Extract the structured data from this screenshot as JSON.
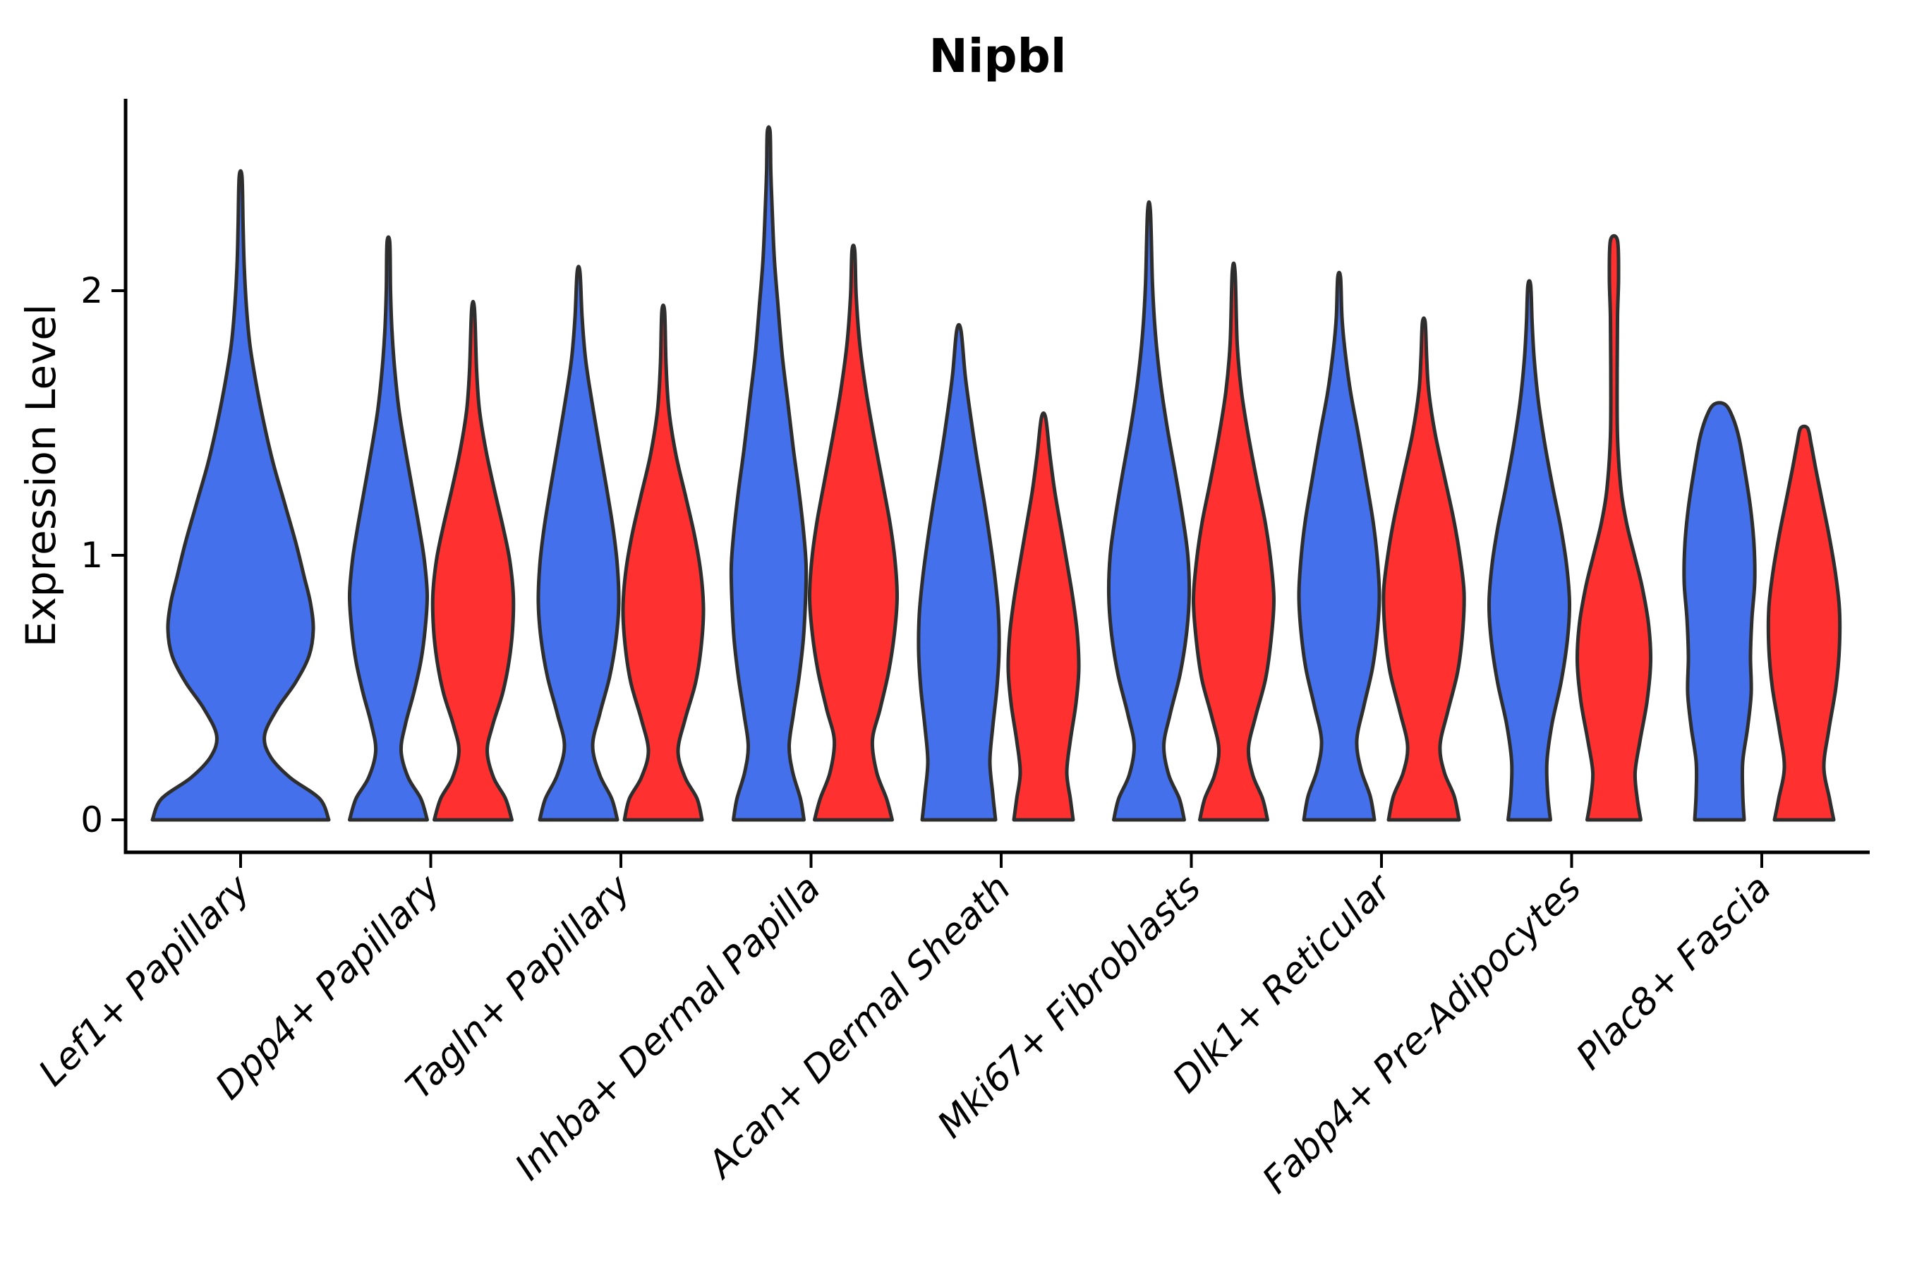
{
  "chart_data": {
    "type": "violin",
    "title": "Nipbl",
    "y_axis": {
      "label": "Expression Level",
      "ticks": [
        0,
        1,
        2
      ],
      "range": [
        -0.12,
        2.75
      ],
      "grid": false
    },
    "x_axis": {
      "categories": [
        "Lef1+ Papillary",
        "Dpp4+ Papillary",
        "Tagln+ Papillary",
        "Inhba+ Dermal Papilla",
        "Acan+ Dermal Sheath",
        "Mki67+ Fibroblasts",
        "Dlk1+ Reticular",
        "Fabp4+ Pre-Adipocytes",
        "Plac8+ Fascia"
      ]
    },
    "legend": "none",
    "series": [
      {
        "name": "blue",
        "color": "#4470EB"
      },
      {
        "name": "red",
        "color": "#FF3030"
      }
    ],
    "outline_color": "#2E2E2E",
    "violins": [
      {
        "category": 0,
        "series": 0,
        "side": "center",
        "max_expression": 2.43,
        "profile": [
          [
            0,
            125
          ],
          [
            0.08,
            112
          ],
          [
            0.16,
            70
          ],
          [
            0.24,
            42
          ],
          [
            0.32,
            34
          ],
          [
            0.42,
            52
          ],
          [
            0.52,
            78
          ],
          [
            0.62,
            97
          ],
          [
            0.72,
            103
          ],
          [
            0.82,
            99
          ],
          [
            0.92,
            90
          ],
          [
            1.05,
            78
          ],
          [
            1.2,
            62
          ],
          [
            1.35,
            46
          ],
          [
            1.5,
            33
          ],
          [
            1.65,
            22
          ],
          [
            1.8,
            13
          ],
          [
            1.95,
            8
          ],
          [
            2.1,
            5
          ],
          [
            2.25,
            3.5
          ],
          [
            2.43,
            2
          ]
        ]
      },
      {
        "category": 1,
        "series": 0,
        "side": "left",
        "max_expression": 2.18,
        "profile": [
          [
            0,
            55
          ],
          [
            0.08,
            46
          ],
          [
            0.16,
            28
          ],
          [
            0.26,
            18
          ],
          [
            0.36,
            24
          ],
          [
            0.48,
            36
          ],
          [
            0.6,
            46
          ],
          [
            0.72,
            52
          ],
          [
            0.85,
            55
          ],
          [
            0.98,
            51
          ],
          [
            1.1,
            44
          ],
          [
            1.25,
            34
          ],
          [
            1.4,
            24
          ],
          [
            1.55,
            15
          ],
          [
            1.7,
            9
          ],
          [
            1.85,
            5
          ],
          [
            2.0,
            3
          ],
          [
            2.18,
            2
          ]
        ]
      },
      {
        "category": 1,
        "series": 1,
        "side": "right",
        "max_expression": 1.93,
        "profile": [
          [
            0,
            55
          ],
          [
            0.08,
            46
          ],
          [
            0.16,
            29
          ],
          [
            0.26,
            20
          ],
          [
            0.36,
            28
          ],
          [
            0.48,
            42
          ],
          [
            0.6,
            51
          ],
          [
            0.72,
            56
          ],
          [
            0.85,
            57
          ],
          [
            0.98,
            52
          ],
          [
            1.1,
            43
          ],
          [
            1.25,
            30
          ],
          [
            1.4,
            18
          ],
          [
            1.55,
            9
          ],
          [
            1.7,
            5
          ],
          [
            1.93,
            2
          ]
        ]
      },
      {
        "category": 2,
        "series": 0,
        "side": "left",
        "max_expression": 2.07,
        "profile": [
          [
            0,
            55
          ],
          [
            0.08,
            47
          ],
          [
            0.17,
            30
          ],
          [
            0.28,
            20
          ],
          [
            0.4,
            30
          ],
          [
            0.54,
            44
          ],
          [
            0.68,
            53
          ],
          [
            0.82,
            57
          ],
          [
            0.96,
            55
          ],
          [
            1.1,
            49
          ],
          [
            1.25,
            40
          ],
          [
            1.42,
            29
          ],
          [
            1.58,
            19
          ],
          [
            1.74,
            10
          ],
          [
            1.9,
            5
          ],
          [
            2.07,
            2
          ]
        ]
      },
      {
        "category": 2,
        "series": 1,
        "side": "right",
        "max_expression": 1.92,
        "profile": [
          [
            0,
            55
          ],
          [
            0.08,
            48
          ],
          [
            0.16,
            31
          ],
          [
            0.26,
            21
          ],
          [
            0.38,
            31
          ],
          [
            0.52,
            46
          ],
          [
            0.66,
            54
          ],
          [
            0.8,
            57
          ],
          [
            0.94,
            53
          ],
          [
            1.08,
            44
          ],
          [
            1.22,
            32
          ],
          [
            1.38,
            18
          ],
          [
            1.55,
            8
          ],
          [
            1.72,
            4
          ],
          [
            1.92,
            2
          ]
        ]
      },
      {
        "category": 3,
        "series": 0,
        "side": "left",
        "max_expression": 2.6,
        "profile": [
          [
            0,
            50
          ],
          [
            0.08,
            45
          ],
          [
            0.18,
            34
          ],
          [
            0.28,
            29
          ],
          [
            0.4,
            35
          ],
          [
            0.54,
            43
          ],
          [
            0.68,
            49
          ],
          [
            0.82,
            52
          ],
          [
            0.96,
            53
          ],
          [
            1.1,
            49
          ],
          [
            1.24,
            43
          ],
          [
            1.4,
            35
          ],
          [
            1.58,
            27
          ],
          [
            1.76,
            19
          ],
          [
            1.95,
            13
          ],
          [
            2.12,
            8
          ],
          [
            2.3,
            5
          ],
          [
            2.45,
            3
          ],
          [
            2.6,
            2
          ]
        ]
      },
      {
        "category": 3,
        "series": 1,
        "side": "right",
        "max_expression": 2.15,
        "profile": [
          [
            0,
            55
          ],
          [
            0.08,
            47
          ],
          [
            0.18,
            33
          ],
          [
            0.3,
            27
          ],
          [
            0.42,
            38
          ],
          [
            0.56,
            50
          ],
          [
            0.7,
            58
          ],
          [
            0.84,
            62
          ],
          [
            0.98,
            59
          ],
          [
            1.12,
            52
          ],
          [
            1.28,
            41
          ],
          [
            1.45,
            29
          ],
          [
            1.62,
            18
          ],
          [
            1.8,
            9
          ],
          [
            1.98,
            4
          ],
          [
            2.15,
            2
          ]
        ]
      },
      {
        "category": 4,
        "series": 0,
        "side": "left",
        "max_expression": 1.85,
        "profile": [
          [
            0,
            52
          ],
          [
            0.1,
            48
          ],
          [
            0.22,
            44
          ],
          [
            0.35,
            48
          ],
          [
            0.5,
            54
          ],
          [
            0.64,
            57
          ],
          [
            0.78,
            56
          ],
          [
            0.92,
            51
          ],
          [
            1.06,
            44
          ],
          [
            1.2,
            36
          ],
          [
            1.36,
            26
          ],
          [
            1.52,
            17
          ],
          [
            1.68,
            9
          ],
          [
            1.85,
            3
          ]
        ]
      },
      {
        "category": 4,
        "series": 1,
        "side": "right",
        "max_expression": 1.52,
        "profile": [
          [
            0,
            42
          ],
          [
            0.08,
            38
          ],
          [
            0.18,
            33
          ],
          [
            0.3,
            38
          ],
          [
            0.44,
            46
          ],
          [
            0.57,
            50
          ],
          [
            0.7,
            48
          ],
          [
            0.83,
            42
          ],
          [
            0.96,
            34
          ],
          [
            1.1,
            25
          ],
          [
            1.24,
            16
          ],
          [
            1.38,
            9
          ],
          [
            1.52,
            3
          ]
        ]
      },
      {
        "category": 5,
        "series": 0,
        "side": "left",
        "max_expression": 2.3,
        "profile": [
          [
            0,
            50
          ],
          [
            0.08,
            43
          ],
          [
            0.17,
            28
          ],
          [
            0.28,
            21
          ],
          [
            0.4,
            30
          ],
          [
            0.55,
            44
          ],
          [
            0.7,
            53
          ],
          [
            0.85,
            57
          ],
          [
            1.0,
            55
          ],
          [
            1.14,
            48
          ],
          [
            1.3,
            38
          ],
          [
            1.48,
            26
          ],
          [
            1.66,
            16
          ],
          [
            1.84,
            9
          ],
          [
            2.02,
            5
          ],
          [
            2.3,
            2
          ]
        ]
      },
      {
        "category": 5,
        "series": 1,
        "side": "right",
        "max_expression": 2.07,
        "profile": [
          [
            0,
            48
          ],
          [
            0.08,
            41
          ],
          [
            0.17,
            27
          ],
          [
            0.27,
            21
          ],
          [
            0.39,
            31
          ],
          [
            0.53,
            45
          ],
          [
            0.68,
            53
          ],
          [
            0.83,
            57
          ],
          [
            0.97,
            53
          ],
          [
            1.12,
            45
          ],
          [
            1.28,
            33
          ],
          [
            1.45,
            21
          ],
          [
            1.62,
            11
          ],
          [
            1.8,
            5
          ],
          [
            2.07,
            2
          ]
        ]
      },
      {
        "category": 6,
        "series": 0,
        "side": "left",
        "max_expression": 2.05,
        "profile": [
          [
            0,
            50
          ],
          [
            0.09,
            44
          ],
          [
            0.19,
            31
          ],
          [
            0.3,
            25
          ],
          [
            0.43,
            35
          ],
          [
            0.57,
            47
          ],
          [
            0.71,
            54
          ],
          [
            0.85,
            57
          ],
          [
            0.99,
            54
          ],
          [
            1.13,
            48
          ],
          [
            1.29,
            38
          ],
          [
            1.46,
            27
          ],
          [
            1.62,
            16
          ],
          [
            1.78,
            8
          ],
          [
            1.9,
            4
          ],
          [
            2.05,
            2
          ]
        ]
      },
      {
        "category": 6,
        "series": 1,
        "side": "right",
        "max_expression": 1.88,
        "profile": [
          [
            0,
            50
          ],
          [
            0.09,
            43
          ],
          [
            0.18,
            29
          ],
          [
            0.28,
            23
          ],
          [
            0.41,
            34
          ],
          [
            0.56,
            48
          ],
          [
            0.71,
            55
          ],
          [
            0.86,
            57
          ],
          [
            1.0,
            51
          ],
          [
            1.14,
            42
          ],
          [
            1.3,
            29
          ],
          [
            1.46,
            16
          ],
          [
            1.62,
            7
          ],
          [
            1.75,
            4
          ],
          [
            1.88,
            2
          ]
        ]
      },
      {
        "category": 7,
        "series": 0,
        "side": "left",
        "max_expression": 2.02,
        "profile": [
          [
            0,
            30
          ],
          [
            0.1,
            26
          ],
          [
            0.22,
            25
          ],
          [
            0.36,
            32
          ],
          [
            0.52,
            45
          ],
          [
            0.68,
            54
          ],
          [
            0.82,
            57
          ],
          [
            0.96,
            53
          ],
          [
            1.1,
            45
          ],
          [
            1.26,
            33
          ],
          [
            1.42,
            22
          ],
          [
            1.58,
            13
          ],
          [
            1.74,
            7
          ],
          [
            1.88,
            4
          ],
          [
            2.02,
            2
          ]
        ]
      },
      {
        "category": 7,
        "series": 1,
        "side": "right",
        "max_expression": 2.19,
        "profile": [
          [
            0,
            38
          ],
          [
            0.08,
            33
          ],
          [
            0.18,
            30
          ],
          [
            0.3,
            37
          ],
          [
            0.45,
            47
          ],
          [
            0.6,
            52
          ],
          [
            0.74,
            49
          ],
          [
            0.88,
            40
          ],
          [
            1.0,
            29
          ],
          [
            1.12,
            18
          ],
          [
            1.25,
            10
          ],
          [
            1.45,
            5
          ],
          [
            1.7,
            4.5
          ],
          [
            1.9,
            5
          ],
          [
            2.05,
            6.5
          ],
          [
            2.19,
            5
          ]
        ]
      },
      {
        "category": 8,
        "series": 0,
        "side": "left",
        "max_expression": 1.57,
        "profile": [
          [
            0,
            35
          ],
          [
            0.1,
            33
          ],
          [
            0.22,
            33
          ],
          [
            0.35,
            40
          ],
          [
            0.48,
            45
          ],
          [
            0.62,
            44
          ],
          [
            0.76,
            46
          ],
          [
            0.9,
            50
          ],
          [
            1.04,
            49
          ],
          [
            1.18,
            44
          ],
          [
            1.32,
            36
          ],
          [
            1.44,
            28
          ],
          [
            1.52,
            19
          ],
          [
            1.57,
            8
          ]
        ]
      },
      {
        "category": 8,
        "series": 1,
        "side": "right",
        "max_expression": 1.48,
        "profile": [
          [
            0,
            42
          ],
          [
            0.08,
            36
          ],
          [
            0.2,
            28
          ],
          [
            0.34,
            35
          ],
          [
            0.5,
            45
          ],
          [
            0.65,
            50
          ],
          [
            0.8,
            50
          ],
          [
            0.94,
            44
          ],
          [
            1.08,
            35
          ],
          [
            1.2,
            26
          ],
          [
            1.32,
            17
          ],
          [
            1.42,
            10
          ],
          [
            1.48,
            5
          ]
        ]
      }
    ]
  }
}
